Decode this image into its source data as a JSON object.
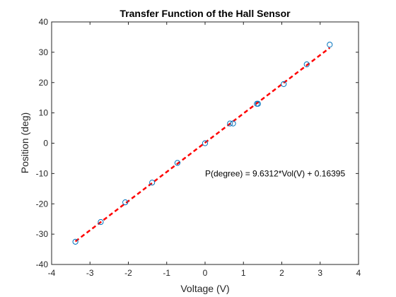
{
  "chart_data": {
    "type": "scatter",
    "title": "Transfer Function of the Hall Sensor",
    "xlabel": "Voltage (V)",
    "ylabel": "Position (deg)",
    "xlim": [
      -4,
      4
    ],
    "ylim": [
      -40,
      40
    ],
    "xticks": [
      -4,
      -3,
      -2,
      -1,
      0,
      1,
      2,
      3,
      4
    ],
    "yticks": [
      -40,
      -30,
      -20,
      -10,
      0,
      10,
      20,
      30,
      40
    ],
    "grid": false,
    "box": true,
    "series": [
      {
        "kind": "points",
        "marker": "open-circle",
        "color": "#0072BD",
        "x": [
          -3.38,
          -2.72,
          -2.08,
          -1.38,
          -0.72,
          0.0,
          0.65,
          0.73,
          1.35,
          1.38,
          2.05,
          2.65,
          3.25
        ],
        "y": [
          -32.5,
          -26.0,
          -19.5,
          -13.0,
          -6.5,
          0.0,
          6.5,
          6.5,
          13.0,
          13.0,
          19.5,
          26.0,
          32.5
        ]
      },
      {
        "kind": "fit-line",
        "style": "dashed",
        "color": "#FF0000",
        "slope": 9.6312,
        "intercept": 0.16395,
        "x_range": [
          -3.38,
          3.25
        ]
      }
    ],
    "annotation": {
      "text": "P(degree) = 9.6312*Vol(V) + 0.16395",
      "x": 0.0,
      "y": -10.0
    }
  }
}
